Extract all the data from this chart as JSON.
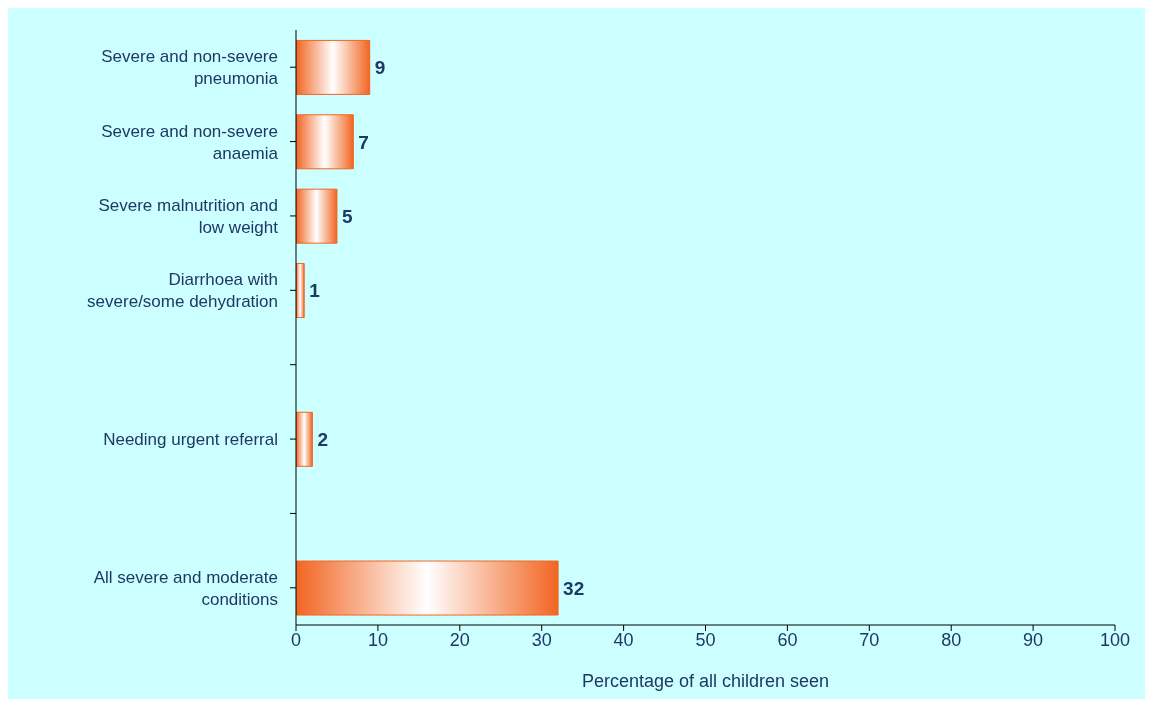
{
  "chart_data": {
    "type": "bar",
    "orientation": "horizontal",
    "categories": [
      "Severe and non-severe pneumonia",
      "Severe and non-severe anaemia",
      "Severe malnutrition and low weight",
      "Diarrhoea with severe/some dehydration",
      null,
      "Needing urgent referral",
      null,
      "All severe and moderate conditions"
    ],
    "values": [
      9,
      7,
      5,
      1,
      null,
      2,
      null,
      32
    ],
    "color": "#f26522",
    "xlabel": "Percentage of all children seen",
    "xlim": [
      0,
      100
    ],
    "xticks": [
      0,
      10,
      20,
      30,
      40,
      50,
      60,
      70,
      80,
      90,
      100
    ],
    "data_labels": true,
    "grid": false,
    "legend": false
  }
}
